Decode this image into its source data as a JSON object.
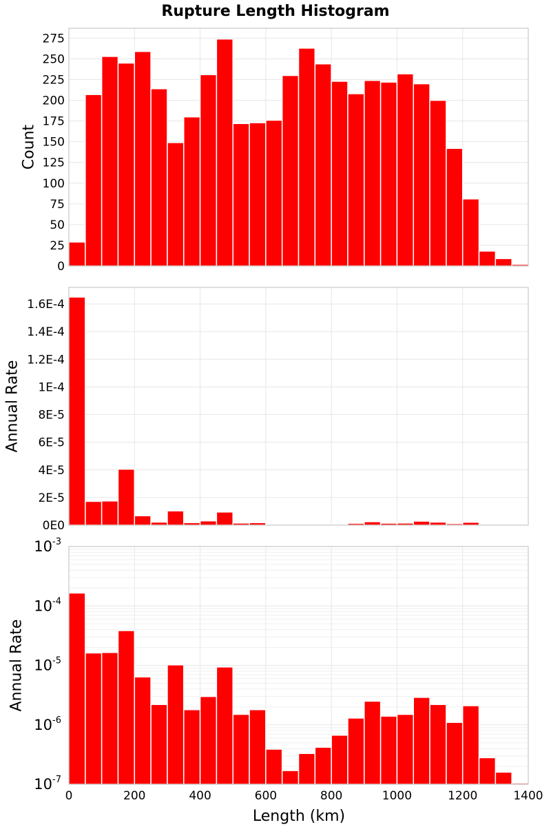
{
  "chart_data": {
    "type": "bar",
    "title": "Rupture Length Histogram",
    "xlabel": "Length (km)",
    "bin_width": 50,
    "x": [
      25,
      75,
      125,
      175,
      225,
      275,
      325,
      375,
      425,
      475,
      525,
      575,
      625,
      675,
      725,
      775,
      825,
      875,
      925,
      975,
      1025,
      1075,
      1125,
      1175,
      1225,
      1275,
      1325,
      1375
    ],
    "xlim": [
      0,
      1400
    ],
    "xticks": [
      0,
      200,
      400,
      600,
      800,
      1000,
      1200,
      1400
    ],
    "xtick_labels": [
      "0",
      "200",
      "400",
      "600",
      "800",
      "1000",
      "1200",
      "1400"
    ],
    "panels": [
      {
        "name": "count",
        "ylabel": "Count",
        "yscale": "linear",
        "ylim": [
          0,
          287
        ],
        "yticks": [
          0,
          25,
          50,
          75,
          100,
          125,
          150,
          175,
          200,
          225,
          250,
          275
        ],
        "ytick_labels": [
          "0",
          "25",
          "50",
          "75",
          "100",
          "125",
          "150",
          "175",
          "200",
          "225",
          "250",
          "275"
        ],
        "values": [
          29,
          207,
          253,
          245,
          259,
          214,
          149,
          180,
          231,
          274,
          172,
          173,
          176,
          230,
          263,
          244,
          223,
          208,
          224,
          222,
          232,
          220,
          200,
          142,
          81,
          18,
          9,
          2
        ]
      },
      {
        "name": "annual-rate-linear",
        "ylabel": "Annual Rate",
        "yscale": "linear",
        "ylim": [
          0,
          0.000172
        ],
        "yticks": [
          0,
          2e-05,
          4e-05,
          6e-05,
          8e-05,
          0.0001,
          0.00012,
          0.00014,
          0.00016
        ],
        "ytick_labels": [
          "0E0",
          "2E-5",
          "4E-5",
          "6E-5",
          "8E-5",
          "1E-4",
          "1.2E-4",
          "1.4E-4",
          "1.6E-4"
        ],
        "values": [
          0.000165,
          1.72e-05,
          1.75e-05,
          4.05e-05,
          6.8e-06,
          2.2e-06,
          1.03e-05,
          1.8e-06,
          3.1e-06,
          9.5e-06,
          1.5e-06,
          1.8e-06,
          4e-07,
          1.7e-07,
          3.2e-07,
          4.2e-07,
          6.8e-07,
          1.3e-06,
          2.5e-06,
          1.4e-06,
          1.5e-06,
          2.9e-06,
          2.2e-06,
          1.1e-06,
          2.1e-06,
          2.8e-07,
          1.6e-07,
          1e-07
        ]
      },
      {
        "name": "annual-rate-log",
        "ylabel": "Annual Rate",
        "yscale": "log",
        "ylim": [
          1e-07,
          0.001
        ],
        "yticks": [
          1e-07,
          1e-06,
          1e-05,
          0.0001,
          0.001
        ],
        "ytick_base": "10",
        "ytick_exponents": [
          "-7",
          "-6",
          "-5",
          "-4",
          "-3"
        ],
        "values": [
          0.000165,
          1.62e-05,
          1.65e-05,
          3.85e-05,
          6.4e-06,
          2.2e-06,
          1.02e-05,
          1.8e-06,
          3e-06,
          9.4e-06,
          1.5e-06,
          1.8e-06,
          3.9e-07,
          1.7e-07,
          3.3e-07,
          4.2e-07,
          6.7e-07,
          1.3e-06,
          2.5e-06,
          1.4e-06,
          1.5e-06,
          2.9e-06,
          2.2e-06,
          1.1e-06,
          2.1e-06,
          2.8e-07,
          1.6e-07,
          1.05e-07
        ]
      }
    ]
  }
}
